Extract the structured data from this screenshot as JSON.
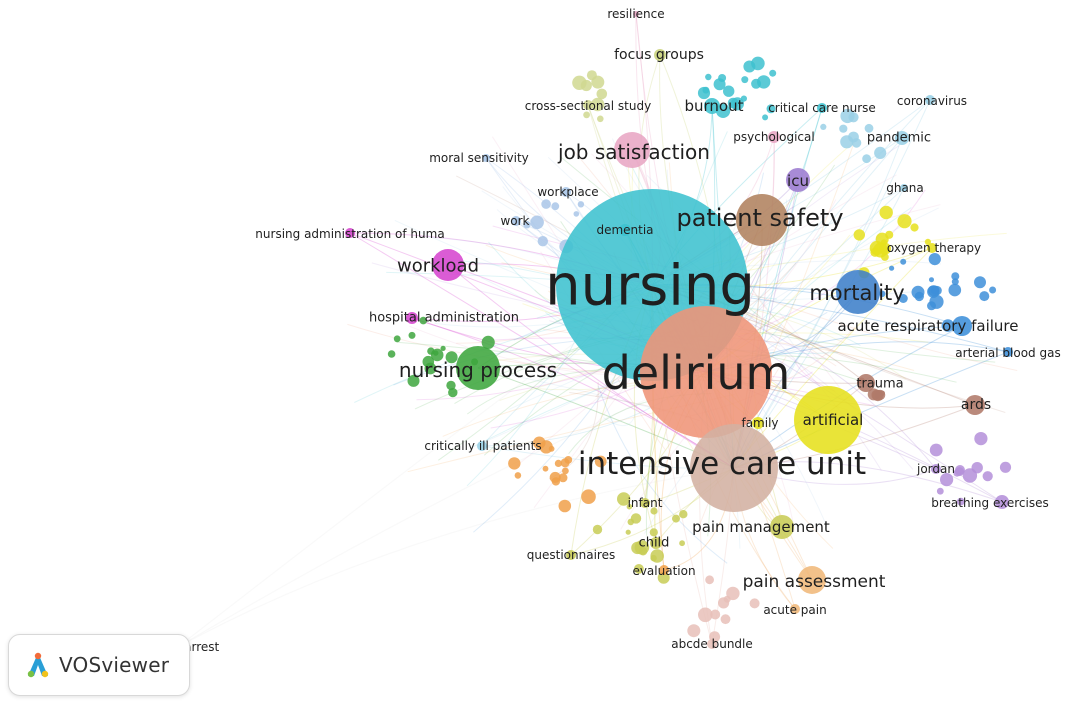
{
  "app": {
    "name": "VOSviewer"
  },
  "network": {
    "type": "co-occurrence keyword map",
    "nodes": [
      {
        "label": "nursing",
        "color": "#3ec1cf",
        "weight": 1.0
      },
      {
        "label": "delirium",
        "color": "#ef9478",
        "weight": 0.8
      },
      {
        "label": "intensive care unit",
        "color": "#d3b0a2",
        "weight": 0.52
      },
      {
        "label": "patient safety",
        "color": "#b0825e",
        "weight": 0.25
      },
      {
        "label": "mortality",
        "color": "#3e7fc9",
        "weight": 0.2
      },
      {
        "label": "job satisfaction",
        "color": "#e8a6c4",
        "weight": 0.18
      },
      {
        "label": "nursing process",
        "color": "#3ea63e",
        "weight": 0.22
      },
      {
        "label": "workload",
        "color": "#d645cf",
        "weight": 0.18
      },
      {
        "label": "pain assessment",
        "color": "#f0b87a",
        "weight": 0.14
      },
      {
        "label": "pain management",
        "color": "#c8cc56",
        "weight": 0.13
      },
      {
        "label": "acute respiratory failure",
        "color": "#3e8fd9",
        "weight": 0.12
      },
      {
        "label": "artificial",
        "color": "#e6e01c",
        "weight": 0.22
      },
      {
        "label": "burnout",
        "color": "#3ec1cf",
        "weight": 0.1
      },
      {
        "label": "icu",
        "color": "#9c7bd0",
        "weight": 0.12
      },
      {
        "label": "ards",
        "color": "#b07a6a",
        "weight": 0.09
      },
      {
        "label": "focus groups",
        "color": "#c9d37a",
        "weight": 0.08
      },
      {
        "label": "trauma",
        "color": "#b07a6a",
        "weight": 0.08
      },
      {
        "label": "hospital administration",
        "color": "#d645cf",
        "weight": 0.08
      },
      {
        "label": "child",
        "color": "#c8cc56",
        "weight": 0.07
      },
      {
        "label": "pandemic",
        "color": "#9ad0e6",
        "weight": 0.08
      },
      {
        "label": "oxygen therapy",
        "color": "#e6e01c",
        "weight": 0.07
      },
      {
        "label": "resilience",
        "color": "#e8a6c4",
        "weight": 0.06
      },
      {
        "label": "cross-sectional study",
        "color": "#d0d890",
        "weight": 0.07
      },
      {
        "label": "critical care nurse",
        "color": "#3ec1cf",
        "weight": 0.06
      },
      {
        "label": "coronavirus",
        "color": "#9ad0e6",
        "weight": 0.06
      },
      {
        "label": "psychological",
        "color": "#e8a6c4",
        "weight": 0.06
      },
      {
        "label": "moral sensitivity",
        "color": "#a9c6e8",
        "weight": 0.06
      },
      {
        "label": "ghana",
        "color": "#9ad0e6",
        "weight": 0.06
      },
      {
        "label": "workplace",
        "color": "#a9c6e8",
        "weight": 0.06
      },
      {
        "label": "work",
        "color": "#a9c6e8",
        "weight": 0.06
      },
      {
        "label": "dementia",
        "color": "#3ec1cf",
        "weight": 0.06
      },
      {
        "label": "nursing administration of huma",
        "color": "#d645cf",
        "weight": 0.06
      },
      {
        "label": "arterial blood gas",
        "color": "#3e8fd9",
        "weight": 0.06
      },
      {
        "label": "family",
        "color": "#e6e01c",
        "weight": 0.06
      },
      {
        "label": "critically ill patients",
        "color": "#9ad0e6",
        "weight": 0.06
      },
      {
        "label": "jordan",
        "color": "#b48fd9",
        "weight": 0.06
      },
      {
        "label": "breathing exercises",
        "color": "#b48fd9",
        "weight": 0.06
      },
      {
        "label": "infant",
        "color": "#c8cc56",
        "weight": 0.06
      },
      {
        "label": "questionnaires",
        "color": "#c8cc56",
        "weight": 0.06
      },
      {
        "label": "evaluation",
        "color": "#f0a04a",
        "weight": 0.06
      },
      {
        "label": "acute pain",
        "color": "#f0b87a",
        "weight": 0.06
      },
      {
        "label": "abcde bundle",
        "color": "#e8c0b8",
        "weight": 0.06
      },
      {
        "label": "cardiac arrest",
        "color": "#e8e8e8",
        "weight": 0.04
      }
    ]
  }
}
